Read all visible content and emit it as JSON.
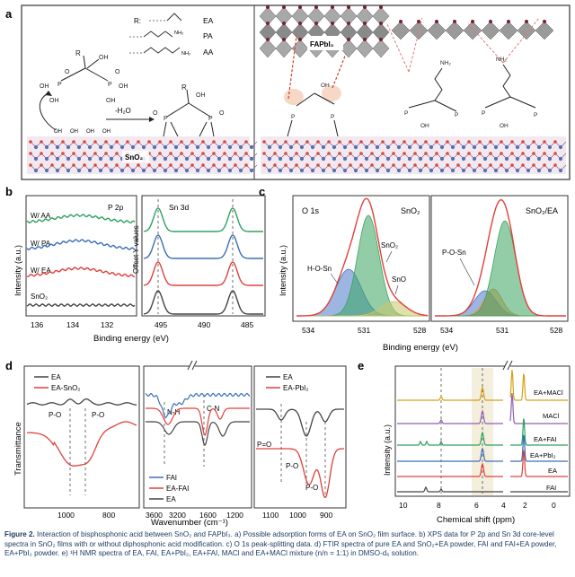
{
  "panel_a": {
    "label": "a",
    "r_label": "R:",
    "groups": [
      "EA",
      "PA",
      "AA"
    ],
    "nh2": "NH₂",
    "minus_h2o": "-H₂O",
    "sno2": "SnO₂",
    "fapbi3": "FAPbI₃",
    "oh": "OH",
    "o": "O",
    "p": "P",
    "r": "R"
  },
  "panel_b": {
    "label": "b",
    "left_title": "P 2p",
    "right_title": "Sn 3d",
    "series": [
      "W/ AA",
      "W/ PA",
      "W/ EA",
      "SnO₂"
    ],
    "colors": [
      "#2ca25f",
      "#3a6fb8",
      "#e0403a",
      "#444444"
    ],
    "y_label": "Intensity (a.u.)",
    "offset_label": "Offset Y values",
    "x_label": "Binding energy (eV)",
    "left_ticks": [
      "136",
      "134",
      "132"
    ],
    "right_ticks": [
      "495",
      "490",
      "485"
    ]
  },
  "panel_c": {
    "label": "c",
    "title": "O 1s",
    "left_sample": "SnO₂",
    "right_sample": "SnO₂/EA",
    "peaks_left": [
      "SnO₂",
      "H-O-Sn",
      "SnO"
    ],
    "peaks_right": [
      "P-O-Sn"
    ],
    "y_label": "Intensity (a.u.)",
    "x_label": "Binding energy (eV)",
    "left_ticks": [
      "534",
      "531",
      "528"
    ],
    "right_ticks": [
      "534",
      "531",
      "528"
    ]
  },
  "panel_d": {
    "label": "d",
    "y_label": "Transmittance",
    "x_label": "Wavenumber (cm⁻¹)",
    "legend1": [
      "EA",
      "EA-SnO₂"
    ],
    "legend2": [
      "FAI",
      "EA-FAI",
      "EA"
    ],
    "legend3": [
      "EA",
      "EA-PbI₂"
    ],
    "annotations1": [
      "P-O",
      "P-O"
    ],
    "annotations2": [
      "N-H",
      "C-N"
    ],
    "annotations3": [
      "P=O",
      "P-O",
      "P-O"
    ],
    "ticks1": [
      "1000",
      "800"
    ],
    "ticks2": [
      "3600",
      "3200",
      "1600",
      "1200"
    ],
    "ticks3": [
      "1100",
      "1000",
      "900"
    ]
  },
  "panel_e": {
    "label": "e",
    "y_label": "Intensity (a.u.)",
    "x_label": "Chemical shift (ppm)",
    "series": [
      "EA+MACl",
      "MACl",
      "EA+FAI",
      "EA+PbI₂",
      "EA",
      "FAI"
    ],
    "colors": [
      "#d4a017",
      "#8e5fb5",
      "#2ca25f",
      "#3a6fb8",
      "#e0403a",
      "#444444"
    ],
    "ticks": [
      "10",
      "8",
      "6",
      "4",
      "2",
      "0"
    ]
  },
  "caption": {
    "figure_label": "Figure 2.",
    "text": " Interaction of bisphosphonic acid between SnO₂ and FAPbI₃. a) Possible adsorption forms of EA on SnO₂ film surface. b) XPS data for P 2p and Sn 3d core-level spectra in SnO₂ films with or without diphosphonic acid modification. c) O 1s peak-splitting data. d) FTIR spectra of pure EA and SnO₂+EA powder, FAI and FAI+EA powder, EA+PbI₂ powder. e) ¹H NMR spectra of EA, FAI, EA+PbI₂, EA+FAI, MACl and EA+MACl mixture (n/n = 1:1) in DMSO-d₆ solution."
  }
}
